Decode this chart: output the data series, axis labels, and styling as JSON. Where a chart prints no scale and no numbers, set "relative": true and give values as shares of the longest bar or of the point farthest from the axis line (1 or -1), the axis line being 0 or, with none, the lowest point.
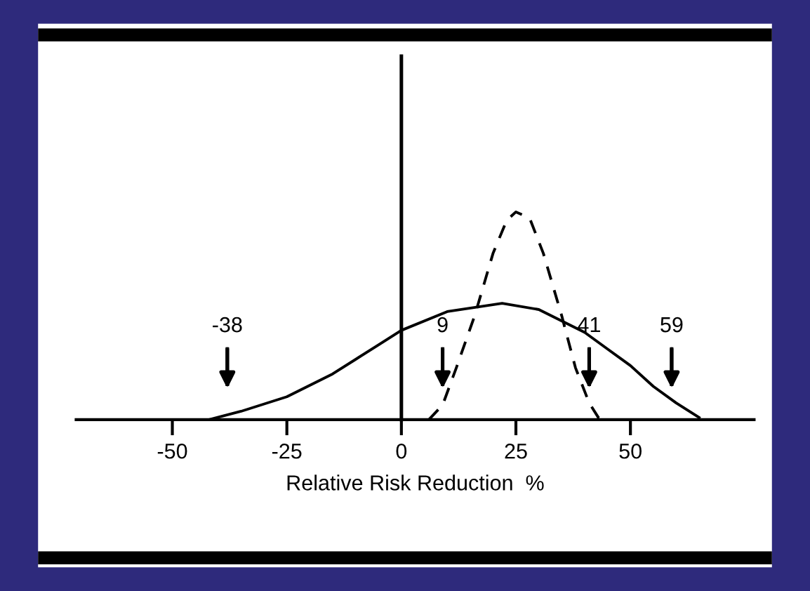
{
  "chart_data": {
    "type": "line",
    "relative": true,
    "xlabel": "Relative Risk Reduction  %",
    "xlim": [
      -71,
      77
    ],
    "xticks": [
      -50,
      -25,
      0,
      25,
      50
    ],
    "tick_labels": "x",
    "series": [
      {
        "color": "#000000",
        "line_style": "solid",
        "x": [
          -42,
          -35,
          -25,
          -15,
          -5,
          0,
          10,
          22,
          30,
          40,
          45,
          50,
          55,
          60,
          65
        ],
        "values": [
          0,
          0.04,
          0.11,
          0.22,
          0.36,
          0.43,
          0.52,
          0.56,
          0.53,
          0.42,
          0.34,
          0.26,
          0.16,
          0.08,
          0.01
        ]
      },
      {
        "color": "#000000",
        "line_style": "dashed",
        "x": [
          6,
          9,
          12,
          16,
          20,
          23,
          25,
          28,
          31,
          35,
          38,
          41,
          43,
          44
        ],
        "values": [
          0,
          0.07,
          0.25,
          0.5,
          0.8,
          0.96,
          1,
          0.97,
          0.8,
          0.5,
          0.25,
          0.08,
          0.01,
          0
        ]
      }
    ],
    "ref_lines": [
      {
        "axis": "x",
        "value": -38,
        "label": "-38"
      },
      {
        "axis": "x",
        "value": 9,
        "label": "9"
      },
      {
        "axis": "x",
        "value": 41,
        "label": "41"
      },
      {
        "axis": "x",
        "value": 59,
        "label": "59"
      }
    ]
  }
}
